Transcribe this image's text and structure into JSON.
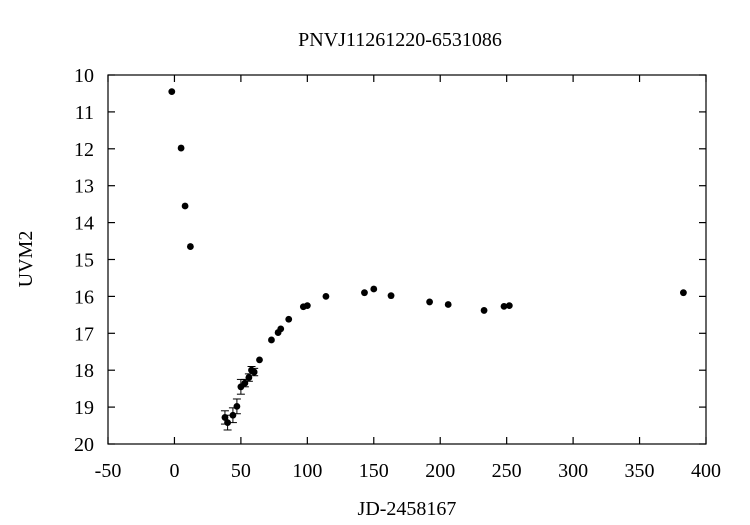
{
  "chart_data": {
    "type": "scatter",
    "title": "PNVJ11261220-6531086",
    "xlabel": "JD-2458167",
    "ylabel": "UVM2",
    "xlim": [
      -50,
      400
    ],
    "ylim": [
      10,
      20
    ],
    "y_inverted": true,
    "grid": false,
    "legend": "none",
    "marker_color": "#000000",
    "x_ticks": [
      -50,
      0,
      50,
      100,
      150,
      200,
      250,
      300,
      350,
      400
    ],
    "x_tick_labels": [
      "-50",
      "0",
      "50",
      "100",
      "150",
      "200",
      "250",
      "300",
      "350",
      "400"
    ],
    "y_ticks": [
      10,
      11,
      12,
      13,
      14,
      15,
      16,
      17,
      18,
      19,
      20
    ],
    "y_tick_labels": [
      "10",
      "11",
      "12",
      "13",
      "14",
      "15",
      "16",
      "17",
      "18",
      "19",
      "20"
    ],
    "series": [
      {
        "points": [
          {
            "x": -2,
            "y": 10.45
          },
          {
            "x": 5,
            "y": 11.98
          },
          {
            "x": 8,
            "y": 13.55
          },
          {
            "x": 12,
            "y": 14.65
          },
          {
            "x": 38,
            "y": 19.28,
            "err": 0.18
          },
          {
            "x": 40,
            "y": 19.42,
            "err": 0.2
          },
          {
            "x": 44,
            "y": 19.22,
            "err": 0.2
          },
          {
            "x": 47,
            "y": 18.98,
            "err": 0.2
          },
          {
            "x": 50,
            "y": 18.45,
            "err": 0.2
          },
          {
            "x": 53,
            "y": 18.35,
            "err": 0.1
          },
          {
            "x": 56,
            "y": 18.2,
            "err": 0.1
          },
          {
            "x": 58,
            "y": 18.0,
            "err": 0.1
          },
          {
            "x": 60,
            "y": 18.05,
            "err": 0.1
          },
          {
            "x": 64,
            "y": 17.72
          },
          {
            "x": 73,
            "y": 17.18
          },
          {
            "x": 78,
            "y": 16.98
          },
          {
            "x": 80,
            "y": 16.88
          },
          {
            "x": 86,
            "y": 16.62
          },
          {
            "x": 97,
            "y": 16.28
          },
          {
            "x": 100,
            "y": 16.25
          },
          {
            "x": 114,
            "y": 16.0
          },
          {
            "x": 143,
            "y": 15.9
          },
          {
            "x": 150,
            "y": 15.8
          },
          {
            "x": 163,
            "y": 15.98
          },
          {
            "x": 192,
            "y": 16.15
          },
          {
            "x": 206,
            "y": 16.22
          },
          {
            "x": 233,
            "y": 16.38
          },
          {
            "x": 248,
            "y": 16.27
          },
          {
            "x": 252,
            "y": 16.25
          },
          {
            "x": 383,
            "y": 15.9
          }
        ]
      }
    ]
  }
}
